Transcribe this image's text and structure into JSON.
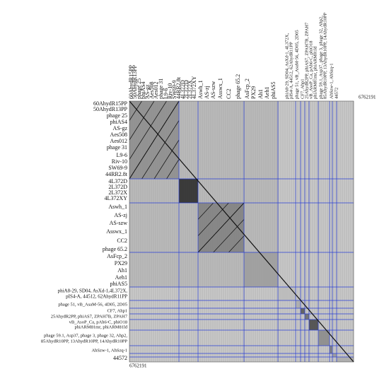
{
  "rows": [
    {
      "label": "60AhydR15PP",
      "color": "#111111"
    },
    {
      "label": "50AhydR13PP",
      "color": "#111111"
    },
    {
      "label": "phage 25",
      "color": "#111111"
    },
    {
      "label": "phiAS4",
      "color": "#111111"
    },
    {
      "label": "AS-gz",
      "color": "#111111"
    },
    {
      "label": "Aes508",
      "color": "#111111"
    },
    {
      "label": "Aes012",
      "color": "#111111"
    },
    {
      "label": "phage 31",
      "color": "#111111"
    },
    {
      "label": "L9-6",
      "color": "#111111"
    },
    {
      "label": "Riv-10",
      "color": "#111111"
    },
    {
      "label": "SW69-9",
      "color": "#111111"
    },
    {
      "label": "44RR2.8t",
      "color": "#111111"
    },
    {
      "label": "4L372D",
      "color": "#111111"
    },
    {
      "label": "2L372D",
      "color": "#111111"
    },
    {
      "label": "2L372X",
      "color": "#111111"
    },
    {
      "label": "4L372XY",
      "color": "#111111"
    },
    {
      "label": "Aswh_1",
      "color": "#111111"
    },
    {
      "label": "AS-zj",
      "color": "#111111"
    },
    {
      "label": "AS-szw",
      "color": "#111111"
    },
    {
      "label": "Asswx_1",
      "color": "#111111"
    },
    {
      "label": "CC2",
      "color": "#111111"
    },
    {
      "label": "phage 65.2",
      "color": "#111111"
    },
    {
      "label": "AsFcp_2",
      "color": "#111111"
    },
    {
      "label": "PX29",
      "color": "#111111"
    },
    {
      "label": "Ah1",
      "color": "#111111"
    },
    {
      "label": "Aeh1",
      "color": "#111111"
    },
    {
      "label": "phiAS5",
      "color": "#111111"
    },
    {
      "label": "phiA8-29, SD04, AsXd-1,4L372X,",
      "color": "#d01c1c"
    },
    {
      "label": "pIS4-A, 44512, 62AhydR11PP",
      "color": "#d01c1c"
    },
    {
      "label": "phage 51, vB_AsaM-56, 4D05, 2D05",
      "color": "#111111"
    },
    {
      "label": "CF7, Ahp1",
      "color": "#111111"
    },
    {
      "label": "25AhydR2PP, phiAS7, ZPAH7B, ZPAH7",
      "color": "#111111"
    },
    {
      "label": "vB_AsoP_Ca, pAh6-C, phiO18",
      "color": "#d01c1c"
    },
    {
      "label": "phiARM81mr, phiARM81ld",
      "color": "#d01c1c"
    },
    {
      "label": "phage 59.1, Asp37, phage 3, phage 32, Ahp2,",
      "color": "#111111"
    },
    {
      "label": "85AhydR10PP, 13AhydR10PP, 14AhydR10PP",
      "color": "#111111"
    },
    {
      "label": "AhSzw-1, AhSzq-1",
      "color": "#111111"
    },
    {
      "label": "44572",
      "color": "#d01c1c"
    }
  ],
  "columns": [
    {
      "label": "60AhydR15PP",
      "color": "#111111"
    },
    {
      "label": "50AhydR13PP",
      "color": "#111111"
    },
    {
      "label": "phage 25",
      "color": "#111111"
    },
    {
      "label": "phiAS4",
      "color": "#111111"
    },
    {
      "label": "AS-gz",
      "color": "#111111"
    },
    {
      "label": "Aes508",
      "color": "#111111"
    },
    {
      "label": "Aes012",
      "color": "#111111"
    },
    {
      "label": "phage 31",
      "color": "#111111"
    },
    {
      "label": "L9-6",
      "color": "#111111"
    },
    {
      "label": "Riv-10",
      "color": "#111111"
    },
    {
      "label": "SW69-9",
      "color": "#111111"
    },
    {
      "label": "44RR2.8t",
      "color": "#111111"
    },
    {
      "label": "4L372D",
      "color": "#111111"
    },
    {
      "label": "2L372D",
      "color": "#111111"
    },
    {
      "label": "2L372X",
      "color": "#111111"
    },
    {
      "label": "4L372XY",
      "color": "#111111"
    },
    {
      "label": "Aswh_1",
      "color": "#111111"
    },
    {
      "label": "AS-zj",
      "color": "#111111"
    },
    {
      "label": "AS-szw",
      "color": "#111111"
    },
    {
      "label": "Asswx_1",
      "color": "#111111"
    },
    {
      "label": "CC2",
      "color": "#111111"
    },
    {
      "label": "phage 65.2",
      "color": "#111111"
    },
    {
      "label": "AsFcp_2",
      "color": "#111111"
    },
    {
      "label": "PX29",
      "color": "#111111"
    },
    {
      "label": "Ah1",
      "color": "#111111"
    },
    {
      "label": "Aeh1",
      "color": "#111111"
    },
    {
      "label": "phiAS5",
      "color": "#111111"
    },
    {
      "label": "phiA8-29, SD04, AsXd-1, 4L372X,",
      "color": "#d01c1c"
    },
    {
      "label": "pIS4-A, 44512, 62AhydR11PP",
      "color": "#d01c1c"
    },
    {
      "label": "phage 51, vB_AsaM-56, 4D05, 2D05",
      "color": "#111111"
    },
    {
      "label": "CF7, Ahp1",
      "color": "#111111"
    },
    {
      "label": "25AhydR2PP, phiAS7, ZPAH7B, ZPAH7",
      "color": "#111111"
    },
    {
      "label": "vB_AsoP_Ca, pAh6-C, phiO18",
      "color": "#d01c1c"
    },
    {
      "label": "phiARM81mr, phiARM81ld",
      "color": "#d01c1c"
    },
    {
      "label": "phage 59.1, Asp37, phage 3, phage 32, Ahp2,",
      "color": "#111111"
    },
    {
      "label": "85AhydR10PP, 13AhydR10PP, 14AhydR10PP",
      "color": "#111111"
    },
    {
      "label": "AhSzw-1, AhSzq-1",
      "color": "#111111"
    },
    {
      "label": "44572",
      "color": "#d01c1c"
    }
  ],
  "genome_length_top": "6762191",
  "genome_length_bottom": "6762191"
}
